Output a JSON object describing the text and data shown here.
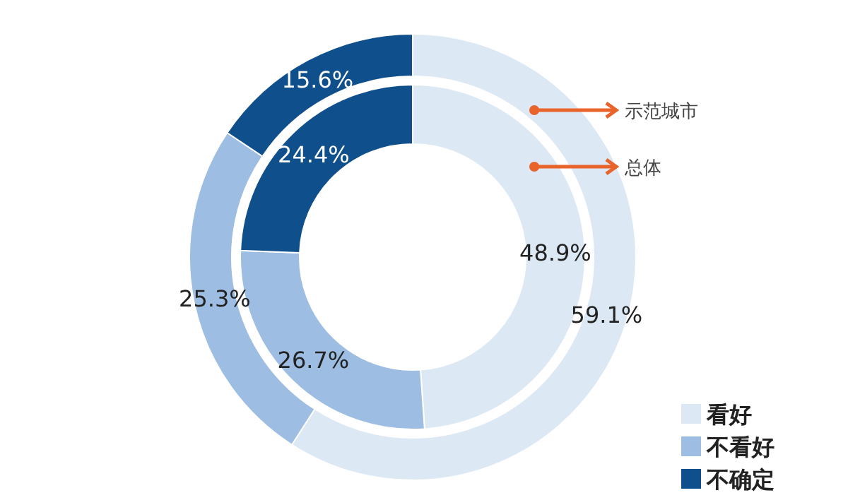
{
  "chart_data": {
    "type": "donut",
    "categories": [
      "看好",
      "不看好",
      "不确定"
    ],
    "series": [
      {
        "name": "总体",
        "colors": [
          "#dce8f4",
          "#9dbde2",
          "#0f4f8c"
        ],
        "values": [
          48.9,
          26.7,
          24.4
        ],
        "value_labels": [
          "48.9%",
          "26.7%",
          "24.4%"
        ]
      },
      {
        "name": "示范城市",
        "colors": [
          "#dce8f4",
          "#9dbde2",
          "#0f4f8c"
        ],
        "values": [
          59.1,
          25.3,
          15.6
        ],
        "value_labels": [
          "59.1%",
          "25.3%",
          "15.6%"
        ]
      }
    ],
    "legend": "bottom right"
  }
}
